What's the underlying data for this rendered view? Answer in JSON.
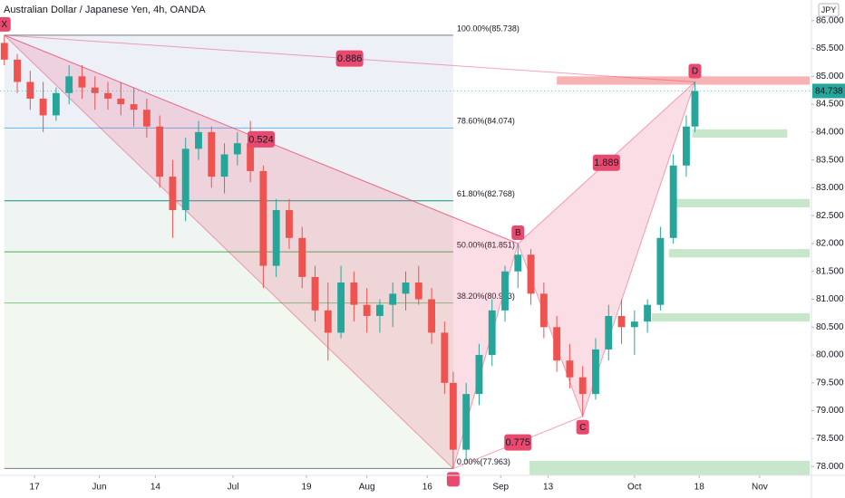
{
  "chart_data": {
    "type": "candlestick",
    "title": "Australian Dollar / Japanese Yen, 4h, OANDA",
    "currency": "JPY",
    "last_price": {
      "value": 84.738,
      "label": "84.738"
    },
    "up_color": "#26a69a",
    "down_color": "#ef5350",
    "xlim": [
      -8,
      180
    ],
    "ylim": [
      77.84,
      86.37
    ],
    "xticks": [
      {
        "value": 0,
        "label": "17"
      },
      {
        "value": 15,
        "label": "Jun"
      },
      {
        "value": 28,
        "label": "14"
      },
      {
        "value": 46,
        "label": "Jul"
      },
      {
        "value": 63,
        "label": "19"
      },
      {
        "value": 77,
        "label": "Aug"
      },
      {
        "value": 91,
        "label": "16"
      },
      {
        "value": 108,
        "label": "Sep"
      },
      {
        "value": 119,
        "label": "13"
      },
      {
        "value": 139,
        "label": "Oct"
      },
      {
        "value": 154,
        "label": "18"
      },
      {
        "value": 168,
        "label": "Nov"
      }
    ],
    "yticks": [
      {
        "value": 78,
        "label": "78.000"
      },
      {
        "value": 78.5,
        "label": "78.500"
      },
      {
        "value": 79,
        "label": "79.000"
      },
      {
        "value": 79.5,
        "label": "79.500"
      },
      {
        "value": 80,
        "label": "80.000"
      },
      {
        "value": 80.5,
        "label": "80.500"
      },
      {
        "value": 81,
        "label": "81.000"
      },
      {
        "value": 81.5,
        "label": "81.500"
      },
      {
        "value": 82,
        "label": "82.000"
      },
      {
        "value": 82.5,
        "label": "82.500"
      },
      {
        "value": 83,
        "label": "83.000"
      },
      {
        "value": 83.5,
        "label": "83.500"
      },
      {
        "value": 84,
        "label": "84.000"
      },
      {
        "value": 84.5,
        "label": "84.500"
      },
      {
        "value": 85,
        "label": "85.000"
      },
      {
        "value": 85.5,
        "label": "85.500"
      },
      {
        "value": 86,
        "label": "86.000"
      }
    ],
    "candles": {
      "x": [
        -7,
        -4,
        -1,
        2,
        5,
        8,
        11,
        14,
        17,
        20,
        23,
        26,
        29,
        32,
        35,
        38,
        41,
        44,
        47,
        50,
        53,
        56,
        59,
        62,
        65,
        68,
        71,
        74,
        77,
        80,
        83,
        86,
        89,
        92,
        95,
        97,
        100,
        103,
        106,
        109,
        112,
        115,
        118,
        121,
        124,
        127,
        130,
        133,
        136,
        139,
        142,
        145,
        148,
        151,
        153
      ],
      "open": [
        85.6,
        85.3,
        84.9,
        84.6,
        84.3,
        84.7,
        85.0,
        84.8,
        84.7,
        84.6,
        84.5,
        84.4,
        84.1,
        83.2,
        82.6,
        83.7,
        84.0,
        83.2,
        83.6,
        83.8,
        83.3,
        81.6,
        82.6,
        82.1,
        81.4,
        80.8,
        80.4,
        81.3,
        80.9,
        80.7,
        80.9,
        81.1,
        81.3,
        81.0,
        80.4,
        79.5,
        78.3,
        79.3,
        80.0,
        80.8,
        81.5,
        81.8,
        81.1,
        80.5,
        79.9,
        79.6,
        79.3,
        80.1,
        80.7,
        80.5,
        80.6,
        80.9,
        82.1,
        83.4,
        84.1
      ],
      "high": [
        85.738,
        85.4,
        85.1,
        84.9,
        84.8,
        85.2,
        85.2,
        85.0,
        84.9,
        84.9,
        84.8,
        84.6,
        84.3,
        83.5,
        83.9,
        84.2,
        84.1,
        83.8,
        84.0,
        84.2,
        83.4,
        82.8,
        82.8,
        82.3,
        81.6,
        81.3,
        81.6,
        81.5,
        81.2,
        81.0,
        81.3,
        81.5,
        81.6,
        81.2,
        80.6,
        79.7,
        79.5,
        80.2,
        81.0,
        81.6,
        82.0,
        81.9,
        81.3,
        80.7,
        80.2,
        79.8,
        80.3,
        80.9,
        81.0,
        80.8,
        81.0,
        82.3,
        83.6,
        84.3,
        84.9
      ],
      "low": [
        85.2,
        84.7,
        84.4,
        84.0,
        84.2,
        84.5,
        84.6,
        84.4,
        84.4,
        84.3,
        84.1,
        83.9,
        83.0,
        82.1,
        82.4,
        83.5,
        83.0,
        82.9,
        83.4,
        83.1,
        81.2,
        81.4,
        81.9,
        81.2,
        80.6,
        79.9,
        80.3,
        80.6,
        80.4,
        80.4,
        80.5,
        80.8,
        80.9,
        80.2,
        79.3,
        77.963,
        78.1,
        79.1,
        79.8,
        80.6,
        81.2,
        80.9,
        80.3,
        79.7,
        79.4,
        78.9,
        79.2,
        79.9,
        80.2,
        80.0,
        80.4,
        80.8,
        82.0,
        83.2,
        84.0
      ],
      "close": [
        85.3,
        84.9,
        84.6,
        84.3,
        84.7,
        85.0,
        84.8,
        84.7,
        84.6,
        84.5,
        84.4,
        84.1,
        83.2,
        82.6,
        83.7,
        84.0,
        83.2,
        83.6,
        83.8,
        83.3,
        81.6,
        82.6,
        82.1,
        81.4,
        80.8,
        80.4,
        81.3,
        80.9,
        80.7,
        80.9,
        81.1,
        81.3,
        81.0,
        80.4,
        79.5,
        78.3,
        79.3,
        80.0,
        80.8,
        81.5,
        81.8,
        81.1,
        80.5,
        79.9,
        79.6,
        79.3,
        80.1,
        80.7,
        80.5,
        80.6,
        80.9,
        82.1,
        83.4,
        84.1,
        84.738
      ]
    },
    "fib": {
      "x": [
        -7,
        97
      ],
      "levels": [
        {
          "value": 85.738,
          "label": "100.00%(85.738)",
          "color": "#787b86",
          "fill": "#eef0f8"
        },
        {
          "value": 84.074,
          "label": "78.60%(84.074)",
          "color": "#64b5f6",
          "fill": "#eff2f5"
        },
        {
          "value": 82.768,
          "label": "61.80%(82.768)",
          "color": "#089981",
          "fill": "#eef5f2"
        },
        {
          "value": 81.851,
          "label": "50.00%(81.851)",
          "color": "#4caf50",
          "fill": "#eff6ef"
        },
        {
          "value": 80.933,
          "label": "38.20%(80.933)",
          "color": "#81c784",
          "fill": "#f2f8ef"
        },
        {
          "value": 77.963,
          "label": "0.00%(77.963)",
          "color": "#787b86",
          "fill": "#f2f8ef"
        }
      ]
    },
    "pattern": {
      "x": [
        -7,
        97,
        112,
        127,
        153
      ],
      "y": [
        85.738,
        77.963,
        82.0,
        78.9,
        84.9
      ],
      "labels": [
        "X",
        null,
        "B",
        "C",
        "D"
      ],
      "ratios": [
        0.886,
        0.524,
        1.889,
        0.775
      ],
      "color": "#e84a6f"
    },
    "boxes": [
      {
        "x": [
          121,
          179.6
        ],
        "y": [
          84.85,
          85.0
        ],
        "color": "#f7b3b3"
      },
      {
        "x": [
          152.4,
          174.4
        ],
        "y": [
          83.9,
          84.05
        ],
        "color": "#c8e6c9"
      },
      {
        "x": [
          148,
          179.6
        ],
        "y": [
          82.65,
          82.8
        ],
        "color": "#c8e6c9"
      },
      {
        "x": [
          147,
          179.6
        ],
        "y": [
          81.75,
          81.9
        ],
        "color": "#c8e6c9"
      },
      {
        "x": [
          143,
          179.6
        ],
        "y": [
          80.6,
          80.75
        ],
        "color": "#c8e6c9"
      },
      {
        "x": [
          114.7,
          179.6
        ],
        "y": [
          77.85,
          78.1
        ],
        "color": "#c8e6c9"
      }
    ]
  }
}
